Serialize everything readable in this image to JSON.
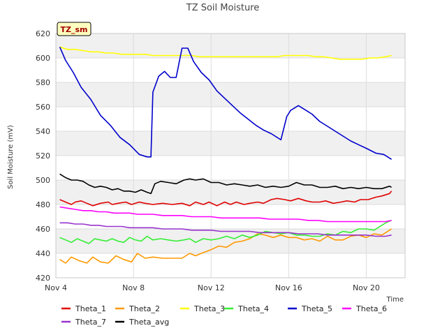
{
  "chart_data": {
    "type": "line",
    "title": "TZ Soil Moisture",
    "xlabel": "Time",
    "ylabel": "Soil Moisture (mV)",
    "badge": "TZ_sm",
    "xlim": [
      4,
      22
    ],
    "ylim": [
      420,
      620
    ],
    "xticks": [
      {
        "v": 4,
        "label": "Nov 4"
      },
      {
        "v": 8,
        "label": "Nov 8"
      },
      {
        "v": 12,
        "label": "Nov 12"
      },
      {
        "v": 16,
        "label": "Nov 16"
      },
      {
        "v": 20,
        "label": "Nov 20"
      }
    ],
    "yticks": [
      420,
      440,
      460,
      480,
      500,
      520,
      540,
      560,
      580,
      600,
      620
    ],
    "bands": [
      [
        440,
        460
      ],
      [
        480,
        500
      ],
      [
        520,
        540
      ],
      [
        560,
        580
      ],
      [
        600,
        620
      ]
    ],
    "band_color": "#f0f0f0",
    "series": [
      {
        "name": "Theta_1",
        "color": "#e00000",
        "x": [
          4.2,
          4.5,
          4.8,
          5.0,
          5.3,
          5.6,
          5.9,
          6.3,
          6.7,
          6.9,
          7.2,
          7.6,
          7.9,
          8.3,
          8.6,
          9.0,
          9.5,
          10.0,
          10.5,
          10.9,
          11.2,
          11.6,
          11.9,
          12.3,
          12.7,
          13.0,
          13.3,
          13.7,
          14.0,
          14.4,
          14.7,
          15.1,
          15.4,
          15.8,
          16.1,
          16.5,
          16.9,
          17.2,
          17.6,
          17.9,
          18.3,
          18.7,
          19.0,
          19.4,
          19.7,
          20.1,
          20.5,
          20.8,
          21.2,
          21.3
        ],
        "y": [
          484,
          482,
          480,
          482,
          483,
          481,
          479,
          481,
          482,
          480,
          481,
          482,
          480,
          482,
          481,
          480,
          481,
          480,
          481,
          479,
          482,
          480,
          482,
          479,
          482,
          480,
          482,
          480,
          481,
          482,
          481,
          484,
          485,
          484,
          483,
          485,
          483,
          482,
          482,
          483,
          481,
          482,
          483,
          482,
          484,
          484,
          486,
          487,
          489,
          491
        ]
      },
      {
        "name": "Theta_2",
        "color": "#ff9900",
        "x": [
          4.2,
          4.5,
          4.8,
          5.2,
          5.6,
          5.9,
          6.3,
          6.7,
          7.1,
          7.5,
          7.9,
          8.2,
          8.6,
          9.0,
          9.5,
          10.0,
          10.5,
          10.9,
          11.2,
          11.5,
          12.0,
          12.4,
          12.8,
          13.2,
          13.6,
          14.0,
          14.4,
          14.8,
          15.2,
          15.6,
          16.0,
          16.4,
          16.8,
          17.2,
          17.6,
          18.0,
          18.4,
          18.8,
          19.2,
          19.6,
          20.0,
          20.4,
          20.8,
          21.2,
          21.3
        ],
        "y": [
          435,
          432,
          437,
          434,
          432,
          437,
          433,
          432,
          438,
          435,
          433,
          440,
          436,
          437,
          436,
          436,
          436,
          440,
          438,
          440,
          443,
          446,
          445,
          449,
          450,
          452,
          456,
          455,
          453,
          455,
          453,
          453,
          451,
          452,
          450,
          454,
          451,
          451,
          454,
          455,
          453,
          456,
          455,
          459,
          460
        ]
      },
      {
        "name": "Theta_3",
        "color": "#ffff00",
        "x": [
          4.2,
          4.6,
          5.0,
          5.4,
          5.8,
          6.2,
          6.6,
          7.0,
          7.4,
          7.8,
          8.2,
          8.6,
          9.0,
          9.4,
          9.8,
          10.2,
          10.6,
          11.0,
          11.4,
          11.8,
          12.2,
          12.6,
          13.0,
          13.4,
          13.8,
          14.2,
          14.6,
          15.0,
          15.4,
          15.8,
          16.2,
          16.6,
          17.0,
          17.4,
          17.8,
          18.2,
          18.6,
          19.0,
          19.4,
          19.8,
          20.2,
          20.6,
          21.0,
          21.3
        ],
        "y": [
          609,
          607,
          607,
          606,
          605,
          605,
          604,
          604,
          603,
          603,
          603,
          603,
          602,
          602,
          602,
          602,
          602,
          602,
          601,
          601,
          601,
          601,
          601,
          601,
          601,
          601,
          601,
          601,
          601,
          602,
          602,
          602,
          602,
          601,
          601,
          600,
          599,
          599,
          599,
          599,
          600,
          600,
          601,
          602
        ]
      },
      {
        "name": "Theta_4",
        "color": "#33ee33",
        "x": [
          4.2,
          4.5,
          4.8,
          5.1,
          5.4,
          5.7,
          6.0,
          6.3,
          6.6,
          6.9,
          7.2,
          7.5,
          7.8,
          8.1,
          8.4,
          8.7,
          9.0,
          9.4,
          9.8,
          10.2,
          10.6,
          10.9,
          11.2,
          11.6,
          12.0,
          12.4,
          12.8,
          13.2,
          13.6,
          14.0,
          14.4,
          14.8,
          15.2,
          15.6,
          16.0,
          16.4,
          16.8,
          17.2,
          17.6,
          18.0,
          18.4,
          18.8,
          19.2,
          19.6,
          20.0,
          20.4,
          20.8,
          21.0,
          21.3
        ],
        "y": [
          453,
          451,
          449,
          452,
          450,
          448,
          452,
          451,
          450,
          452,
          450,
          449,
          453,
          451,
          450,
          454,
          451,
          452,
          451,
          450,
          451,
          452,
          449,
          452,
          451,
          452,
          454,
          452,
          455,
          453,
          455,
          458,
          457,
          456,
          457,
          455,
          455,
          454,
          454,
          456,
          455,
          458,
          457,
          460,
          460,
          459,
          463,
          465,
          467
        ]
      },
      {
        "name": "Theta_5",
        "color": "#0000cc",
        "x": [
          4.2,
          4.5,
          4.9,
          5.3,
          5.8,
          6.3,
          6.8,
          7.3,
          7.8,
          8.3,
          8.7,
          8.9,
          9.0,
          9.3,
          9.6,
          9.9,
          10.2,
          10.5,
          10.8,
          11.1,
          11.5,
          11.9,
          12.3,
          12.7,
          13.1,
          13.5,
          13.9,
          14.3,
          14.7,
          15.1,
          15.6,
          15.9,
          16.1,
          16.5,
          16.9,
          17.2,
          17.6,
          18.0,
          18.4,
          18.8,
          19.2,
          19.6,
          20.0,
          20.5,
          20.9,
          21.3
        ],
        "y": [
          609,
          598,
          588,
          576,
          566,
          553,
          545,
          535,
          529,
          521,
          519,
          519,
          572,
          585,
          589,
          584,
          584,
          608,
          608,
          597,
          588,
          582,
          573,
          567,
          561,
          555,
          550,
          545,
          541,
          538,
          533,
          552,
          557,
          561,
          557,
          554,
          548,
          544,
          540,
          536,
          532,
          529,
          526,
          522,
          521,
          517
        ]
      },
      {
        "name": "Theta_6",
        "color": "#ff00ff",
        "x": [
          4.2,
          4.6,
          5.0,
          5.4,
          5.8,
          6.2,
          6.6,
          7.0,
          7.4,
          7.8,
          8.2,
          8.6,
          9.0,
          9.5,
          10.0,
          10.5,
          11.0,
          11.5,
          12.0,
          12.5,
          13.0,
          13.5,
          14.0,
          14.5,
          15.0,
          15.5,
          16.0,
          16.5,
          17.0,
          17.5,
          18.0,
          18.5,
          19.0,
          19.5,
          20.0,
          20.5,
          21.0,
          21.3
        ],
        "y": [
          478,
          477,
          476,
          475,
          475,
          474,
          474,
          473,
          473,
          473,
          472,
          472,
          472,
          471,
          471,
          471,
          470,
          470,
          470,
          469,
          469,
          469,
          469,
          469,
          468,
          468,
          468,
          468,
          467,
          467,
          466,
          466,
          466,
          466,
          466,
          466,
          466,
          467
        ]
      },
      {
        "name": "Theta_7",
        "color": "#9933cc",
        "x": [
          4.2,
          4.6,
          5.0,
          5.4,
          5.8,
          6.2,
          6.6,
          7.0,
          7.4,
          7.8,
          8.2,
          8.6,
          9.0,
          9.5,
          10.0,
          10.5,
          11.0,
          11.5,
          12.0,
          12.5,
          13.0,
          13.5,
          14.0,
          14.5,
          15.0,
          15.5,
          16.0,
          16.5,
          17.0,
          17.5,
          18.0,
          18.5,
          19.0,
          19.5,
          20.0,
          20.5,
          21.0,
          21.3
        ],
        "y": [
          465,
          465,
          464,
          464,
          463,
          463,
          462,
          462,
          462,
          461,
          461,
          461,
          461,
          460,
          460,
          460,
          459,
          459,
          459,
          458,
          458,
          458,
          458,
          457,
          457,
          457,
          457,
          456,
          456,
          456,
          455,
          455,
          455,
          455,
          455,
          454,
          454,
          455
        ]
      },
      {
        "name": "Theta_avg",
        "color": "#000000",
        "x": [
          4.2,
          4.5,
          4.8,
          5.1,
          5.4,
          5.7,
          6.0,
          6.3,
          6.6,
          6.9,
          7.2,
          7.5,
          7.8,
          8.1,
          8.4,
          8.7,
          8.9,
          9.1,
          9.4,
          9.8,
          10.2,
          10.6,
          10.9,
          11.2,
          11.6,
          12.0,
          12.4,
          12.8,
          13.2,
          13.6,
          14.0,
          14.4,
          14.8,
          15.2,
          15.6,
          16.0,
          16.4,
          16.8,
          17.2,
          17.6,
          18.0,
          18.4,
          18.8,
          19.2,
          19.6,
          20.0,
          20.4,
          20.8,
          21.2,
          21.3
        ],
        "y": [
          505,
          502,
          500,
          500,
          499,
          496,
          494,
          495,
          494,
          492,
          493,
          491,
          491,
          490,
          492,
          490,
          489,
          497,
          499,
          498,
          497,
          500,
          501,
          500,
          501,
          498,
          498,
          496,
          497,
          496,
          495,
          496,
          494,
          495,
          494,
          495,
          498,
          496,
          496,
          494,
          494,
          495,
          493,
          494,
          493,
          494,
          493,
          493,
          495,
          494
        ]
      }
    ]
  }
}
